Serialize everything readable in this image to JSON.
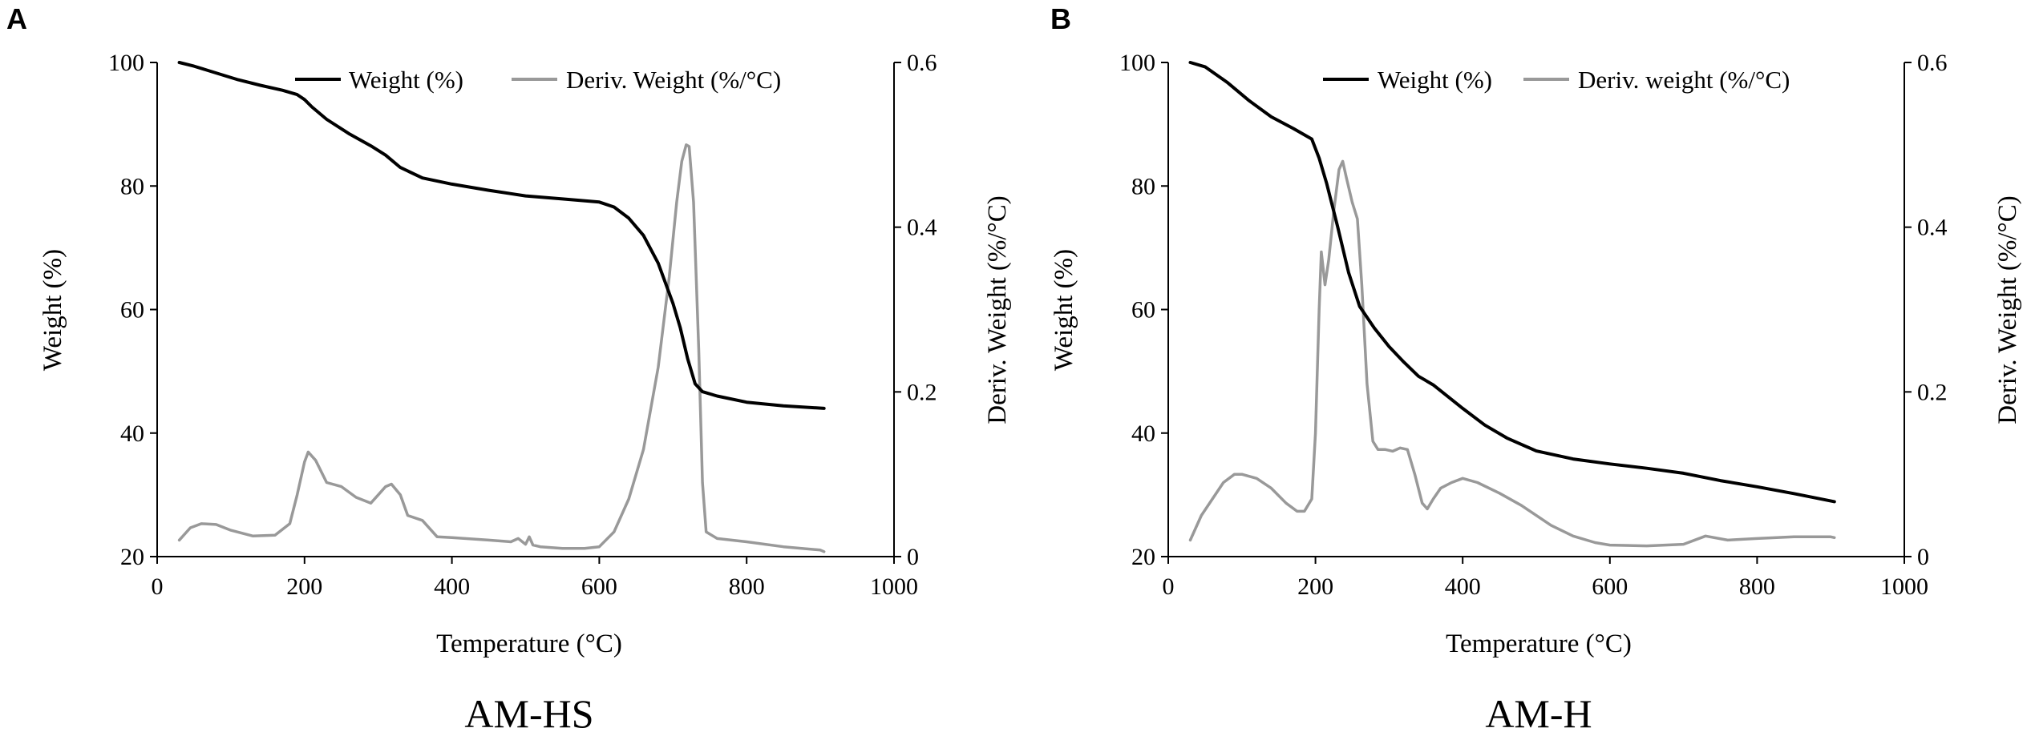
{
  "chart_data": [
    {
      "type": "line",
      "panel_letter": "A",
      "caption": "AM-HS",
      "xlabel": "Temperature  (°C)",
      "ylabel": "Weight  (%)",
      "y2label": "Deriv.  Weight  (%/°C)",
      "xlim": [
        0,
        1000
      ],
      "ylim": [
        20,
        100
      ],
      "y2lim": [
        0,
        0.6
      ],
      "xticks": [
        "0",
        "200",
        "400",
        "600",
        "800",
        "1000"
      ],
      "yticks": [
        "20",
        "40",
        "60",
        "80",
        "100"
      ],
      "y2ticks": [
        "0",
        "0.2",
        "0.4",
        "0.6"
      ],
      "series": [
        {
          "name": "Weight (%)",
          "axis": "left",
          "color": "#000000",
          "x": [
            30,
            50,
            80,
            110,
            140,
            170,
            190,
            200,
            210,
            230,
            260,
            290,
            310,
            330,
            360,
            400,
            450,
            500,
            550,
            600,
            620,
            640,
            660,
            680,
            700,
            710,
            720,
            730,
            740,
            760,
            800,
            850,
            905
          ],
          "y": [
            100,
            99.4,
            98.3,
            97.2,
            96.3,
            95.5,
            94.8,
            94,
            92.8,
            90.8,
            88.5,
            86.5,
            85,
            83,
            81.3,
            80.3,
            79.3,
            78.4,
            77.9,
            77.4,
            76.6,
            74.8,
            72,
            67.5,
            61,
            57,
            52,
            48,
            46.7,
            46,
            45,
            44.4,
            44
          ]
        },
        {
          "name": "Deriv. Weight (%/°C)",
          "axis": "right",
          "color": "#999999",
          "x": [
            30,
            45,
            60,
            80,
            100,
            130,
            160,
            180,
            190,
            200,
            205,
            215,
            230,
            250,
            270,
            290,
            300,
            310,
            318,
            330,
            340,
            360,
            380,
            400,
            450,
            480,
            490,
            500,
            505,
            510,
            520,
            550,
            580,
            600,
            620,
            640,
            660,
            680,
            695,
            705,
            712,
            718,
            722,
            728,
            735,
            740,
            745,
            760,
            800,
            850,
            900,
            905
          ],
          "y": [
            0.02,
            0.035,
            0.04,
            0.039,
            0.032,
            0.025,
            0.026,
            0.04,
            0.075,
            0.115,
            0.127,
            0.117,
            0.09,
            0.085,
            0.072,
            0.065,
            0.075,
            0.085,
            0.088,
            0.075,
            0.05,
            0.044,
            0.024,
            0.023,
            0.02,
            0.018,
            0.022,
            0.015,
            0.024,
            0.014,
            0.012,
            0.01,
            0.01,
            0.012,
            0.03,
            0.07,
            0.13,
            0.23,
            0.34,
            0.43,
            0.48,
            0.5,
            0.498,
            0.43,
            0.25,
            0.09,
            0.03,
            0.022,
            0.018,
            0.012,
            0.008,
            0.006
          ]
        }
      ]
    },
    {
      "type": "line",
      "panel_letter": "B",
      "caption": "AM-H",
      "xlabel": "Temperature  (°C)",
      "ylabel": "Weight  (%)",
      "y2label": "Deriv.  Weight  (%/°C)",
      "xlim": [
        0,
        1000
      ],
      "ylim": [
        20,
        100
      ],
      "y2lim": [
        0,
        0.6
      ],
      "xticks": [
        "0",
        "200",
        "400",
        "600",
        "800",
        "1000"
      ],
      "yticks": [
        "20",
        "40",
        "60",
        "80",
        "100"
      ],
      "y2ticks": [
        "0",
        "0.2",
        "0.4",
        "0.6"
      ],
      "series": [
        {
          "name": "Weight (%)",
          "axis": "left",
          "color": "#000000",
          "x": [
            30,
            50,
            80,
            110,
            140,
            170,
            195,
            205,
            215,
            230,
            245,
            260,
            280,
            300,
            320,
            340,
            360,
            380,
            400,
            430,
            460,
            500,
            550,
            600,
            650,
            700,
            750,
            800,
            850,
            905
          ],
          "y": [
            100,
            99.3,
            96.8,
            93.8,
            91.2,
            89.3,
            87.6,
            84.5,
            80.5,
            73.5,
            66,
            60.5,
            57,
            54,
            51.5,
            49.2,
            47.8,
            45.9,
            44,
            41.3,
            39.2,
            37.1,
            35.8,
            35,
            34.3,
            33.5,
            32.3,
            31.3,
            30.2,
            28.9
          ]
        },
        {
          "name": "Deriv. weight (%/°C)",
          "axis": "right",
          "color": "#999999",
          "x": [
            30,
            45,
            60,
            75,
            90,
            100,
            120,
            140,
            160,
            175,
            185,
            195,
            200,
            205,
            208,
            213,
            218,
            225,
            232,
            237,
            242,
            250,
            257,
            263,
            270,
            278,
            285,
            295,
            305,
            315,
            325,
            335,
            345,
            352,
            360,
            370,
            385,
            400,
            420,
            450,
            480,
            500,
            520,
            550,
            580,
            600,
            650,
            700,
            730,
            760,
            800,
            850,
            900,
            905
          ],
          "y": [
            0.02,
            0.05,
            0.07,
            0.09,
            0.1,
            0.1,
            0.095,
            0.083,
            0.065,
            0.055,
            0.055,
            0.07,
            0.15,
            0.3,
            0.37,
            0.33,
            0.36,
            0.42,
            0.47,
            0.48,
            0.46,
            0.43,
            0.41,
            0.33,
            0.21,
            0.14,
            0.13,
            0.13,
            0.128,
            0.132,
            0.13,
            0.1,
            0.065,
            0.058,
            0.07,
            0.083,
            0.09,
            0.095,
            0.09,
            0.077,
            0.062,
            0.05,
            0.038,
            0.025,
            0.017,
            0.014,
            0.013,
            0.015,
            0.025,
            0.02,
            0.022,
            0.024,
            0.024,
            0.023
          ]
        }
      ]
    }
  ]
}
